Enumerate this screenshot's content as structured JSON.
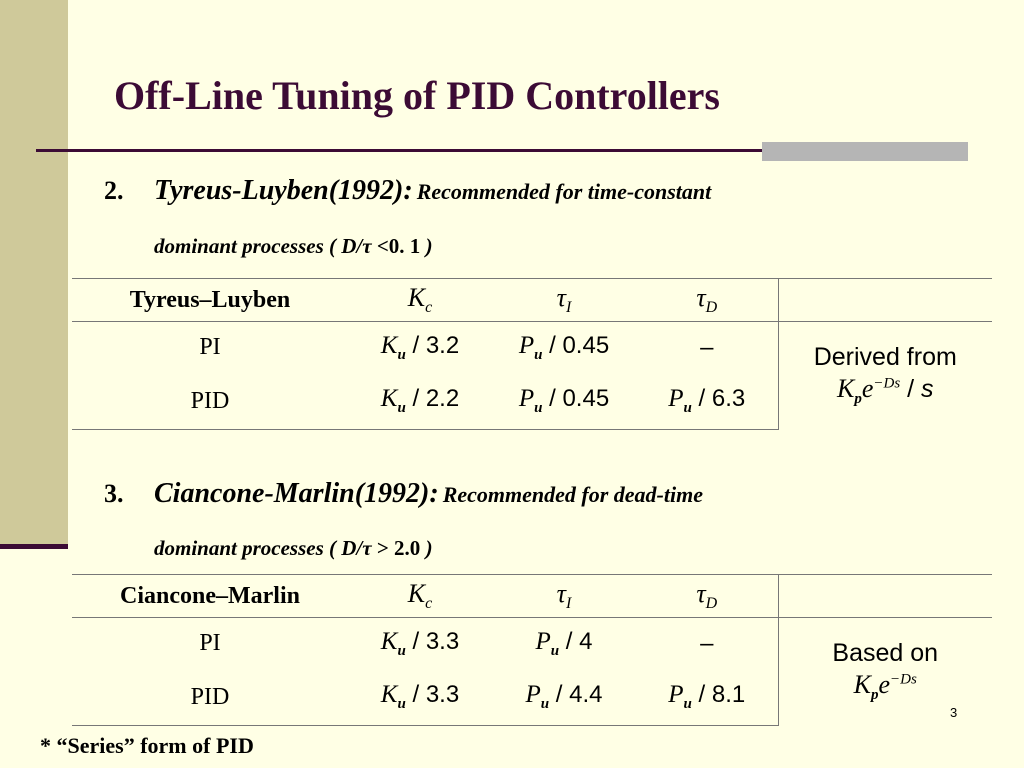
{
  "slide": {
    "title": "Off-Line Tuning of PID Controllers",
    "page_number": "3",
    "footnote": "* “Series” form of PID"
  },
  "items": [
    {
      "number": "2.",
      "name": "Tyreus-Luyben(1992):",
      "description": "Recommended for time-constant",
      "continuation": "dominant processes (",
      "condition_var": "D/τ",
      "condition_op": " <0. 1",
      "condition_close": " )"
    },
    {
      "number": "3.",
      "name": "Ciancone-Marlin(1992):",
      "description": "Recommended for dead-time",
      "continuation": "dominant processes (",
      "condition_var": "D/τ",
      "condition_op": " > 2.0",
      "condition_close": " )"
    }
  ],
  "tables": [
    {
      "method": "Tyreus–Luyben",
      "columns": [
        "Kc",
        "τI",
        "τD"
      ],
      "rows": [
        {
          "controller": "PI",
          "kc": {
            "var": "Ku",
            "op": " / 3.2"
          },
          "ti": {
            "var": "Pu",
            "op": " / 0.45"
          },
          "td": {
            "var": "",
            "op": "–"
          }
        },
        {
          "controller": "PID",
          "kc": {
            "var": "Ku",
            "op": " / 2.2"
          },
          "ti": {
            "var": "Pu",
            "op": " / 0.45"
          },
          "td": {
            "var": "Pu",
            "op": " / 6.3"
          }
        }
      ],
      "note_text": "Derived from",
      "note_formula": "Kpe−Ds / s"
    },
    {
      "method": "Ciancone–Marlin",
      "columns": [
        "Kc",
        "τI",
        "τD"
      ],
      "rows": [
        {
          "controller": "PI",
          "kc": {
            "var": "Ku",
            "op": " / 3.3"
          },
          "ti": {
            "var": "Pu",
            "op": " / 4"
          },
          "td": {
            "var": "",
            "op": "–"
          }
        },
        {
          "controller": "PID",
          "kc": {
            "var": "Ku",
            "op": " / 3.3"
          },
          "ti": {
            "var": "Pu",
            "op": " / 4.4"
          },
          "td": {
            "var": "Pu",
            "op": " / 8.1"
          }
        }
      ],
      "note_text": "Based on",
      "note_formula": "Kpe−Ds"
    }
  ],
  "colors": {
    "title": "#3c0b35",
    "background": "#ffffe5",
    "side_band": "#cfc99a",
    "accent_bar": "#b5b5b5"
  }
}
